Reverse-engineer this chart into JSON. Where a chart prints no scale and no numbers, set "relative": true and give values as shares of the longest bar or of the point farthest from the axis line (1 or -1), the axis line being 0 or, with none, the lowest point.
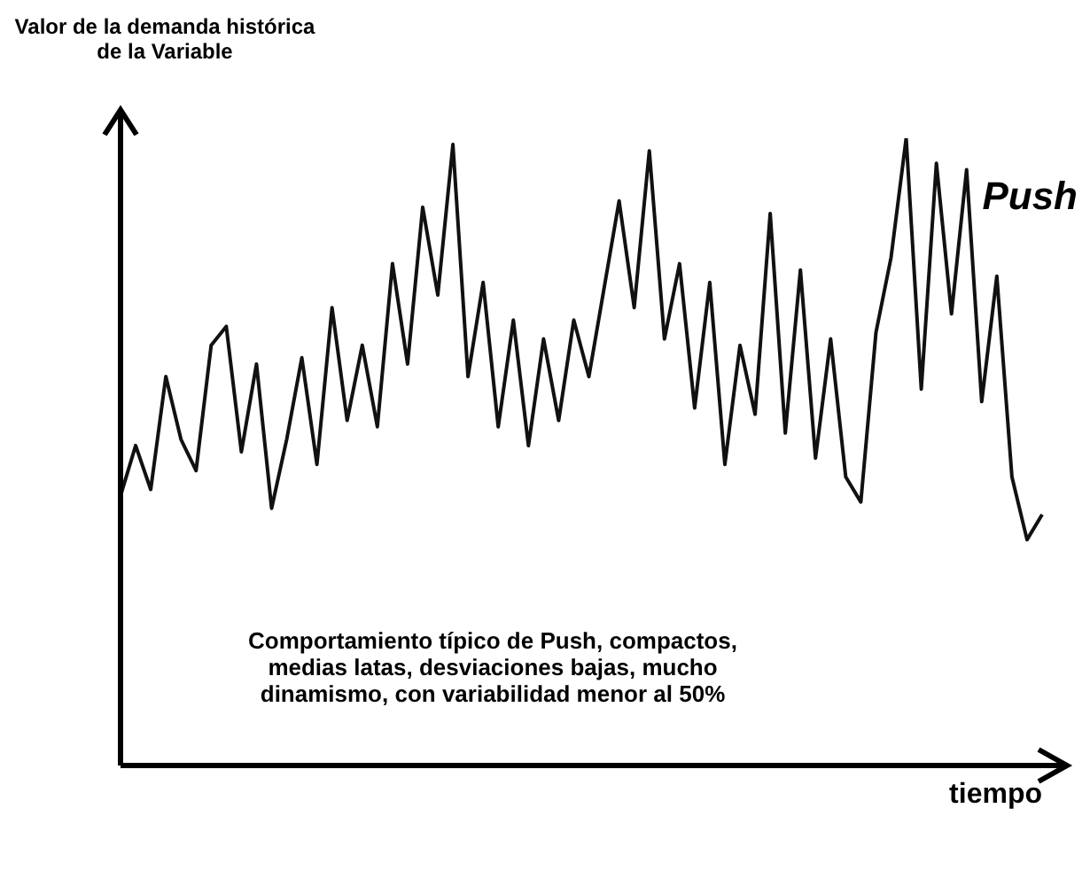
{
  "chart_data": {
    "type": "line",
    "relative": true,
    "title": "Push",
    "ylabel": "Valor de la demanda histórica de la Variable",
    "xlabel": "tiempo",
    "annotations": [
      "Comportamiento típico de Push, compactos, medias latas, desviaciones bajas, mucho dinamismo, con variabilidad menor al 50%"
    ],
    "categories": [
      null,
      null,
      null,
      null,
      null,
      null,
      null,
      null,
      null,
      null,
      null,
      null,
      null,
      null,
      null,
      null,
      null,
      null,
      null,
      null,
      null,
      null,
      null,
      null,
      null,
      null,
      null,
      null,
      null,
      null,
      null,
      null,
      null,
      null,
      null,
      null,
      null,
      null,
      null,
      null,
      null,
      null,
      null,
      null,
      null,
      null,
      null,
      null,
      null,
      null,
      null,
      null,
      null,
      null,
      null,
      null,
      null,
      null,
      null,
      null,
      null,
      null
    ],
    "series": [
      {
        "color": "#111111",
        "values": [
          0.43,
          0.51,
          0.44,
          0.62,
          0.52,
          0.47,
          0.67,
          0.7,
          0.5,
          0.64,
          0.41,
          0.52,
          0.65,
          0.48,
          0.73,
          0.55,
          0.67,
          0.54,
          0.8,
          0.64,
          0.89,
          0.75,
          0.99,
          0.62,
          0.77,
          0.54,
          0.71,
          0.51,
          0.68,
          0.55,
          0.71,
          0.62,
          0.76,
          0.9,
          0.73,
          0.98,
          0.68,
          0.8,
          0.57,
          0.77,
          0.48,
          0.67,
          0.56,
          0.88,
          0.53,
          0.79,
          0.49,
          0.68,
          0.46,
          0.42,
          0.69,
          0.81,
          1.0,
          0.6,
          0.96,
          0.72,
          0.95,
          0.58,
          0.78,
          0.46,
          0.36,
          0.4
        ]
      }
    ],
    "grid": false,
    "legend": false,
    "marker": "none",
    "line_style": "solid"
  }
}
